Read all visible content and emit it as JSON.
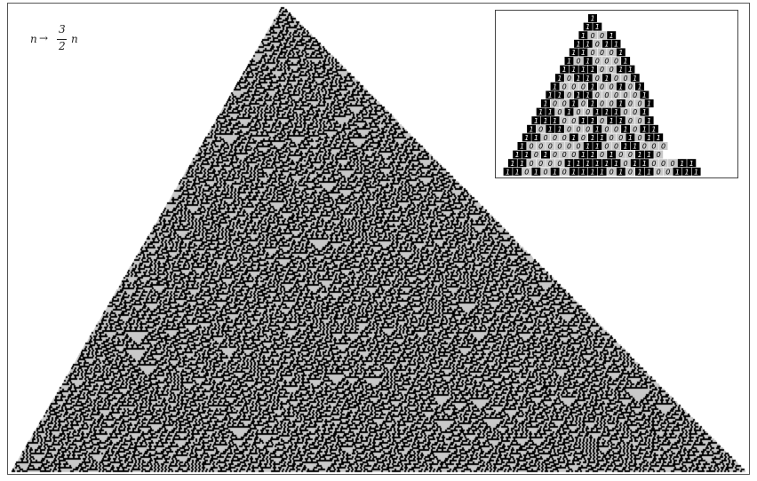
{
  "formula": {
    "lhs": "n",
    "arrow": "→",
    "numerator": "3",
    "denominator": "2",
    "rhs": "n"
  },
  "inset_rows": [
    "1",
    "11",
    "1001",
    "11011",
    "110001",
    "1010001",
    "11110011",
    "101101001",
    "1000100101",
    "11011000001",
    "100101001001",
    "110100111001",
    "1110011011001",
    "10110001001011",
    "110001011001011",
    "1000000110011000",
    "1101000110100110",
    "11000011111101100011",
    "110101011110101100111"
  ],
  "colors": {
    "on": "#000000",
    "off": "#c8c8c8",
    "frame": "#555555",
    "digit_on": "#ffffff",
    "digit_off": "#000000"
  }
}
